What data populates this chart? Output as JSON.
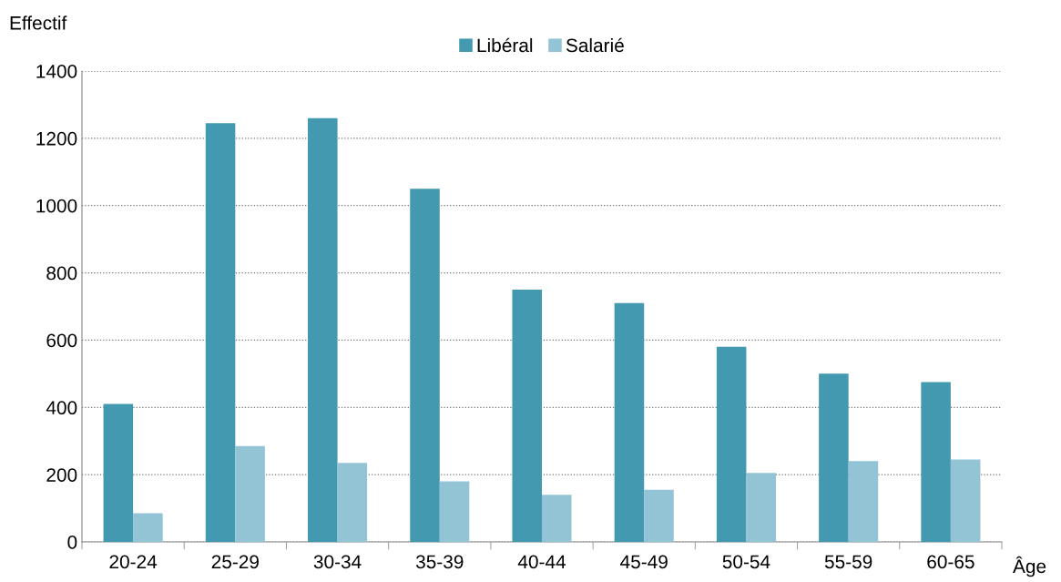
{
  "chart_data": {
    "type": "bar",
    "ylabel": "Effectif",
    "xlabel": "Âge",
    "categories": [
      "20-24",
      "25-29",
      "30-34",
      "35-39",
      "40-44",
      "45-49",
      "50-54",
      "55-59",
      "60-65"
    ],
    "series": [
      {
        "name": "Libéral",
        "color": "#4299b0",
        "values": [
          410,
          1245,
          1260,
          1050,
          750,
          710,
          580,
          500,
          475
        ]
      },
      {
        "name": "Salarié",
        "color": "#93c4d6",
        "values": [
          85,
          285,
          235,
          180,
          140,
          155,
          205,
          240,
          245
        ]
      }
    ],
    "ylim": [
      0,
      1400
    ],
    "yticks": [
      0,
      200,
      400,
      600,
      800,
      1000,
      1200,
      1400
    ],
    "grid": "y",
    "legend": "top"
  }
}
